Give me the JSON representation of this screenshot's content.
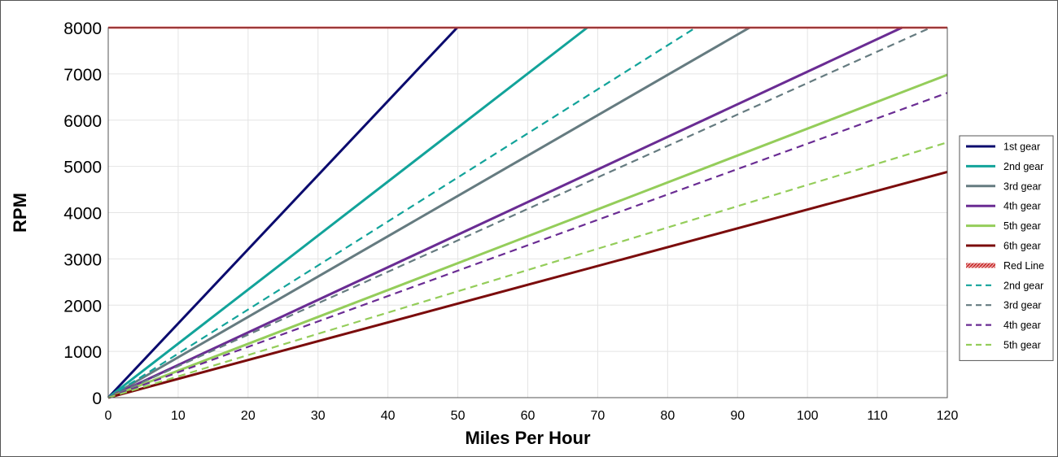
{
  "chart_data": {
    "type": "line",
    "title": "",
    "xlabel": "Miles Per Hour",
    "ylabel": "RPM",
    "xlim": [
      0,
      120
    ],
    "ylim": [
      0,
      8000
    ],
    "xticks": [
      0,
      10,
      20,
      30,
      40,
      50,
      60,
      70,
      80,
      90,
      100,
      110,
      120
    ],
    "yticks": [
      0,
      1000,
      2000,
      3000,
      4000,
      5000,
      6000,
      7000,
      8000
    ],
    "grid": true,
    "legend_position": "right",
    "series": [
      {
        "name": "1st gear",
        "color": "#0b0b6e",
        "dash": "solid",
        "x": [
          0,
          49.9
        ],
        "y": [
          0,
          8000
        ]
      },
      {
        "name": "2nd gear",
        "color": "#12a39a",
        "dash": "solid",
        "x": [
          0,
          68.5
        ],
        "y": [
          0,
          8000
        ]
      },
      {
        "name": "3rd gear",
        "color": "#657b80",
        "dash": "solid",
        "x": [
          0,
          91.7
        ],
        "y": [
          0,
          8000
        ]
      },
      {
        "name": "4th gear",
        "color": "#6a2c93",
        "dash": "solid",
        "x": [
          0,
          113.5
        ],
        "y": [
          0,
          8000
        ]
      },
      {
        "name": "5th gear",
        "color": "#94cd5a",
        "dash": "solid",
        "x": [
          0,
          120
        ],
        "y": [
          0,
          6980
        ]
      },
      {
        "name": "6th gear",
        "color": "#7b0c0c",
        "dash": "solid",
        "x": [
          0,
          120
        ],
        "y": [
          0,
          4880
        ]
      },
      {
        "name": "Red Line",
        "color": "#e02020",
        "dash": "redline",
        "x": [
          0,
          120
        ],
        "y": [
          8000,
          8000
        ]
      },
      {
        "name": "2nd gear",
        "color": "#12a39a",
        "dash": "dashed",
        "x": [
          0,
          84
        ],
        "y": [
          0,
          8000
        ]
      },
      {
        "name": "3rd gear",
        "color": "#657b80",
        "dash": "dashed",
        "x": [
          0,
          117.6
        ],
        "y": [
          0,
          8000
        ]
      },
      {
        "name": "4th gear",
        "color": "#6a2c93",
        "dash": "dashed",
        "x": [
          0,
          120
        ],
        "y": [
          0,
          6590
        ]
      },
      {
        "name": "5th gear",
        "color": "#94cd5a",
        "dash": "dashed",
        "x": [
          0,
          120
        ],
        "y": [
          0,
          5520
        ]
      }
    ]
  }
}
